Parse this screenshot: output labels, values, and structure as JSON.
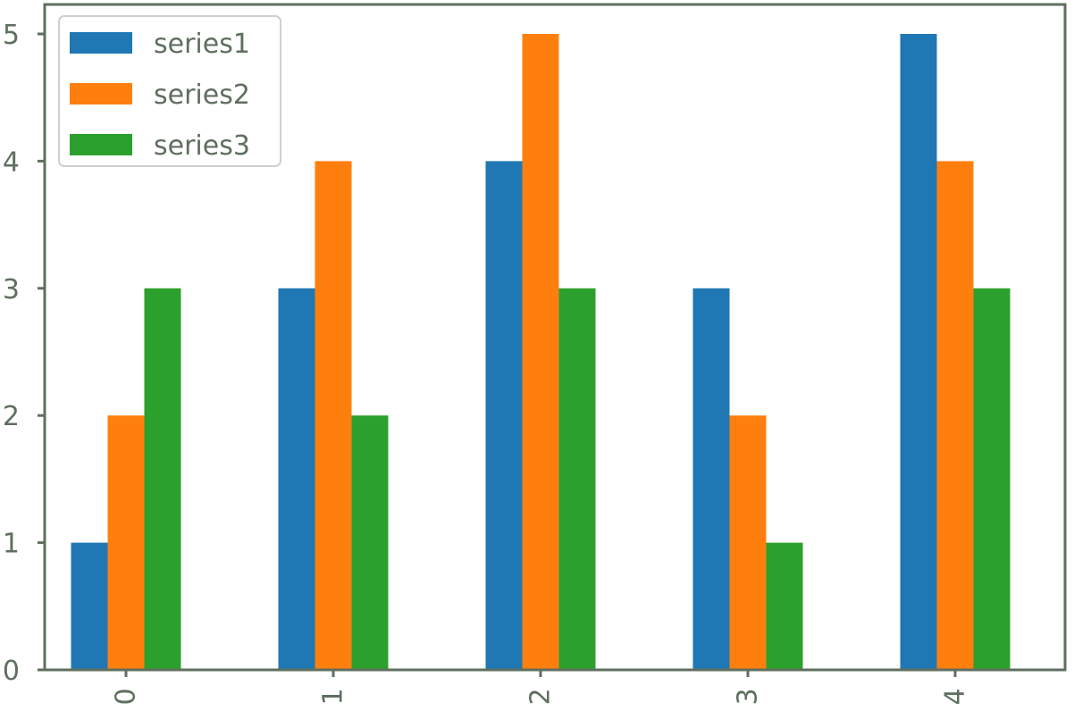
{
  "chart_data": {
    "type": "bar",
    "categories": [
      "0",
      "1",
      "2",
      "3",
      "4"
    ],
    "series": [
      {
        "name": "series1",
        "values": [
          1,
          3,
          4,
          3,
          5
        ],
        "color": "#1f77b4"
      },
      {
        "name": "series2",
        "values": [
          2,
          4,
          5,
          2,
          4
        ],
        "color": "#ff7f0e"
      },
      {
        "name": "series3",
        "values": [
          3,
          2,
          3,
          1,
          3
        ],
        "color": "#2ca02c"
      }
    ],
    "title": "",
    "xlabel": "",
    "ylabel": "",
    "ylim": [
      0,
      5
    ],
    "yticks": [
      "0",
      "1",
      "2",
      "3",
      "4",
      "5"
    ],
    "x_tick_rotation": "vertical",
    "grid": false,
    "legend_position": "top-left"
  },
  "colors": {
    "axis": "#5f6f5f",
    "legend_border": "#cfcfcf"
  }
}
